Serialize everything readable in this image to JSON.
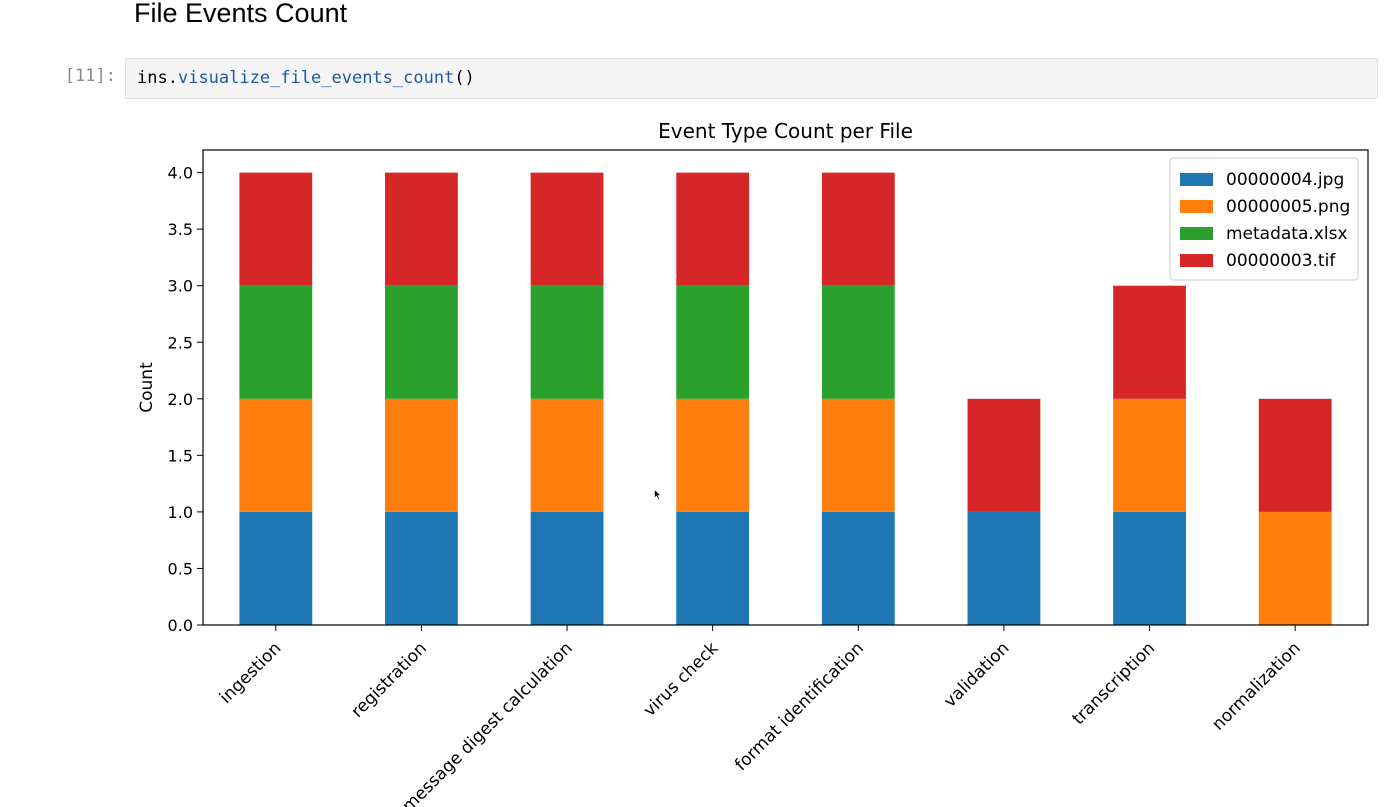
{
  "notebook": {
    "heading": "File Events Count",
    "cell": {
      "prompt": "[11]:",
      "code_object": "ins",
      "code_dot": ".",
      "code_method": "visualize_file_events_count",
      "code_parens": "()"
    }
  },
  "chart_data": {
    "type": "bar",
    "stacked": true,
    "title": "Event Type Count per File",
    "xlabel": "",
    "ylabel": "Count",
    "ylim": [
      0,
      4.2
    ],
    "yticks": [
      "0.0",
      "0.5",
      "1.0",
      "1.5",
      "2.0",
      "2.5",
      "3.0",
      "3.5",
      "4.0"
    ],
    "grid": false,
    "legend_position": "top-right",
    "categories": [
      "ingestion",
      "registration",
      "message digest calculation",
      "virus check",
      "format identification",
      "validation",
      "transcription",
      "normalization"
    ],
    "series": [
      {
        "name": "00000004.jpg",
        "color": "#1f77b4",
        "values": [
          1,
          1,
          1,
          1,
          1,
          1,
          1,
          0
        ]
      },
      {
        "name": "00000005.png",
        "color": "#ff7f0e",
        "values": [
          1,
          1,
          1,
          1,
          1,
          0,
          1,
          1
        ]
      },
      {
        "name": "metadata.xlsx",
        "color": "#2ca02c",
        "values": [
          1,
          1,
          1,
          1,
          1,
          0,
          0,
          0
        ]
      },
      {
        "name": "00000003.tif",
        "color": "#d62728",
        "values": [
          1,
          1,
          1,
          1,
          1,
          1,
          1,
          1
        ]
      }
    ]
  }
}
